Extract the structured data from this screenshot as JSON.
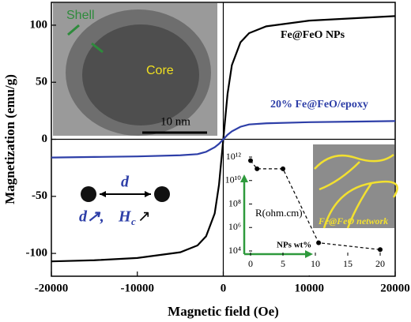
{
  "chart_data": [
    {
      "type": "line",
      "x_label": "Magnetic field (Oe)",
      "y_label": "Magnetization (emu/g)",
      "x": [
        -20000,
        -15000,
        -10000,
        -5000,
        -3000,
        -2000,
        -1000,
        -500,
        0,
        500,
        1000,
        2000,
        3000,
        5000,
        10000,
        15000,
        20000
      ],
      "series": [
        {
          "name": "Fe@FeO NPs",
          "color": "#000000",
          "values": [
            -107,
            -106,
            -104,
            -99,
            -93,
            -85,
            -65,
            -40,
            0,
            40,
            65,
            85,
            93,
            99,
            104,
            106,
            108
          ]
        },
        {
          "name": "20% Fe@FeO/epoxy",
          "color": "#2e3fa8",
          "values": [
            -16,
            -15.5,
            -15,
            -14,
            -13,
            -11,
            -7,
            -4,
            0,
            4,
            7,
            11,
            13,
            14,
            15,
            15.5,
            16
          ]
        }
      ],
      "xlim": [
        -20000,
        20000
      ],
      "xticks": [
        -20000,
        -10000,
        0,
        10000,
        20000
      ],
      "ylim": [
        -120,
        120
      ],
      "yticks": [
        -100,
        -50,
        0,
        50,
        100
      ]
    },
    {
      "type": "line",
      "x_label": "NPs wt%",
      "y_label": "R(ohm.cm)",
      "log_y": true,
      "x": [
        0,
        1,
        5,
        10.5,
        20
      ],
      "series": [
        {
          "color": "#000000",
          "values": [
            500000000000,
            100000000000,
            100000000000,
            50000,
            13000
          ]
        }
      ],
      "xlim": [
        0,
        20
      ],
      "xticks": [
        0,
        5,
        10,
        15,
        20
      ],
      "ylim": [
        10000,
        1000000000000
      ],
      "yticks": [
        {
          "value": 10000,
          "label": "10⁴"
        },
        {
          "value": 1000000,
          "label": "10⁶"
        },
        {
          "value": 100000000,
          "label": "10⁸"
        },
        {
          "value": 10000000000,
          "label": "10¹⁰"
        },
        {
          "value": 1000000000000,
          "label": "10¹²"
        }
      ]
    }
  ],
  "tem_image": {
    "shell_label": "Shell",
    "core_label": "Core",
    "scale_bar": "10 nm"
  },
  "network_image": {
    "label": "Fe@FeO network"
  },
  "schematic": {
    "distance": "d",
    "trend_d": "d↗,",
    "trend_h": "H",
    "trend_h_sub": "c",
    "trend_h_arrow": "↗"
  }
}
